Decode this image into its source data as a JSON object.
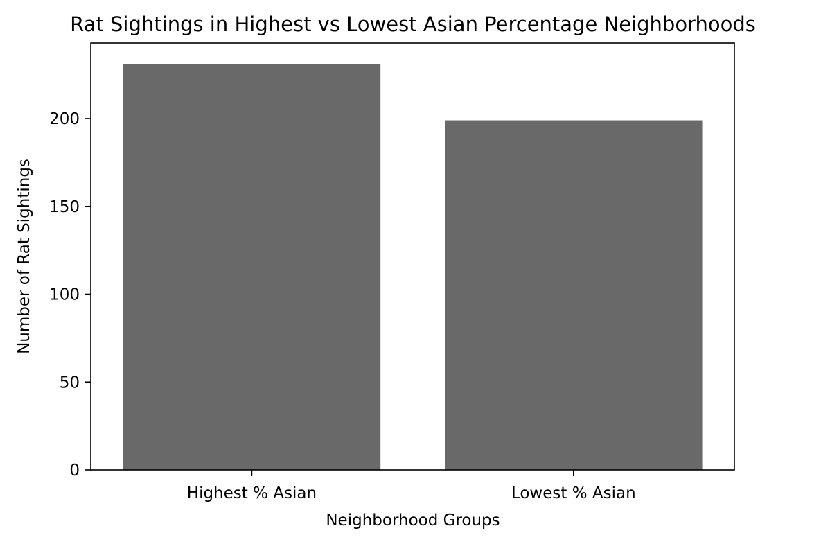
{
  "chart_data": {
    "type": "bar",
    "title": "Rat Sightings in Highest vs Lowest Asian Percentage Neighborhoods",
    "xlabel": "Neighborhood Groups",
    "ylabel": "Number of Rat Sightings",
    "categories": [
      "Highest % Asian",
      "Lowest % Asian"
    ],
    "values": [
      231,
      199
    ],
    "ylim": [
      0,
      243
    ],
    "yticks": [
      0,
      50,
      100,
      150,
      200
    ],
    "bar_color": "#696969",
    "grid": false,
    "legend": "none"
  }
}
